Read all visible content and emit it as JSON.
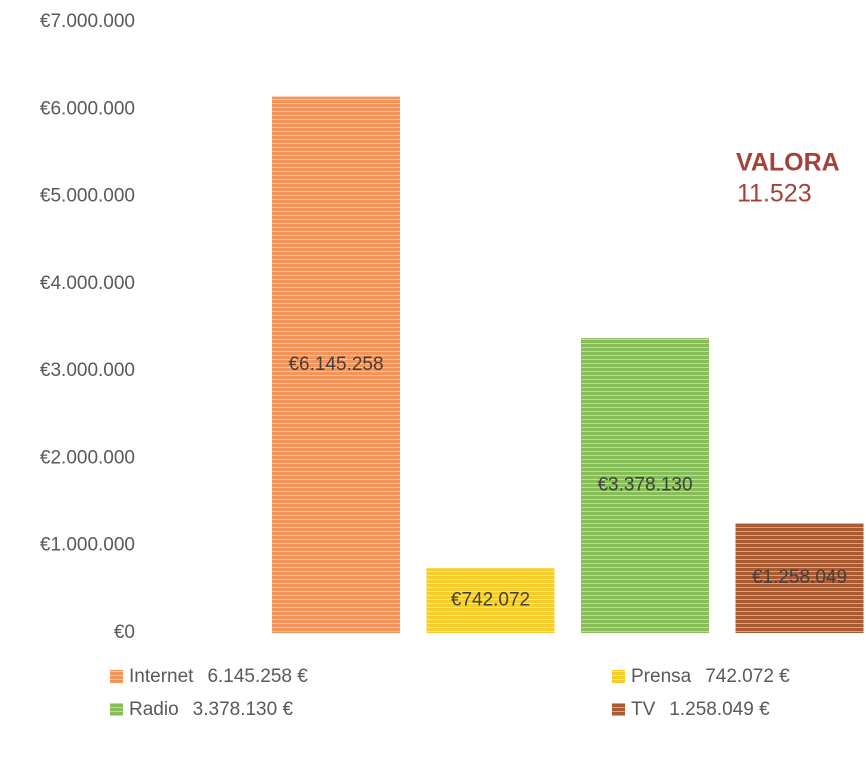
{
  "chart_data": {
    "type": "bar",
    "categories": [
      "Internet",
      "Prensa",
      "Radio",
      "TV"
    ],
    "values": [
      6145258,
      742072,
      3378130,
      1258049
    ],
    "value_labels": [
      "€6.145.258",
      "€742.072",
      "€3.378.130",
      "€1.258.049"
    ],
    "colors": [
      "#f4935a",
      "#f6cc2a",
      "#86bd58",
      "#a95a31"
    ],
    "legend_value_labels": [
      "6.145.258 €",
      "742.072 €",
      "3.378.130 €",
      "1.258.049 €"
    ],
    "ylim": [
      0,
      7000000
    ],
    "yticks": [
      {
        "value": 0,
        "label": "€0"
      },
      {
        "value": 1000000,
        "label": "€1.000.000"
      },
      {
        "value": 2000000,
        "label": "€2.000.000"
      },
      {
        "value": 3000000,
        "label": "€3.000.000"
      },
      {
        "value": 4000000,
        "label": "€4.000.000"
      },
      {
        "value": 5000000,
        "label": "€5.000.000"
      },
      {
        "value": 6000000,
        "label": "€6.000.000"
      },
      {
        "value": 7000000,
        "label": "€7.000.000"
      }
    ],
    "annotation": {
      "title": "VALORA",
      "value": "11.523"
    }
  }
}
